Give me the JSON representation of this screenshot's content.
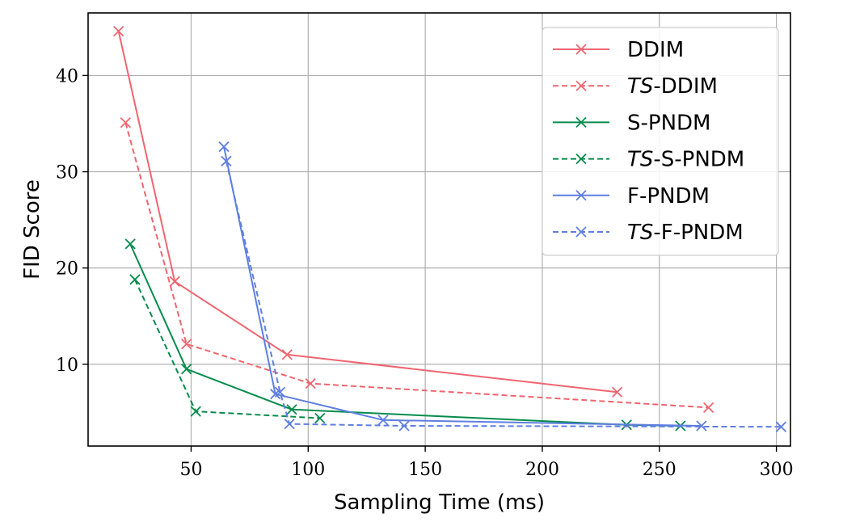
{
  "chart_data": {
    "type": "line",
    "title": "",
    "xlabel": "Sampling Time (ms)",
    "ylabel": "FID Score",
    "xlim": [
      6,
      306
    ],
    "ylim": [
      1.5,
      46.5
    ],
    "xticks": [
      50,
      100,
      150,
      200,
      250,
      300
    ],
    "yticks": [
      10,
      20,
      30,
      40
    ],
    "grid": true,
    "legend_position": "top-right",
    "series": [
      {
        "name": "DDIM",
        "name_prefix": "",
        "name_suffix": "DDIM",
        "color": "#f0656f",
        "linestyle": "solid",
        "marker": "x",
        "points": [
          [
            19,
            44.6
          ],
          [
            43,
            18.6
          ],
          [
            91,
            11.0
          ],
          [
            232,
            7.1
          ]
        ]
      },
      {
        "name": "TS-DDIM",
        "name_prefix": "TS",
        "name_suffix": "-DDIM",
        "color": "#f0656f",
        "linestyle": "dashed",
        "marker": "x",
        "points": [
          [
            22,
            35.1
          ],
          [
            48,
            12.1
          ],
          [
            101,
            8.0
          ],
          [
            271,
            5.5
          ]
        ]
      },
      {
        "name": "S-PNDM",
        "name_prefix": "",
        "name_suffix": "S-PNDM",
        "color": "#068c4c",
        "linestyle": "solid",
        "marker": "x",
        "points": [
          [
            24,
            22.5
          ],
          [
            48,
            9.5
          ],
          [
            93,
            5.3
          ],
          [
            236,
            3.7
          ],
          [
            259,
            3.6
          ]
        ]
      },
      {
        "name": "TS-S-PNDM",
        "name_prefix": "TS",
        "name_suffix": "-S-PNDM",
        "color": "#068c4c",
        "linestyle": "dashed",
        "marker": "x",
        "points": [
          [
            26,
            18.8
          ],
          [
            52,
            5.1
          ],
          [
            105,
            4.4
          ]
        ]
      },
      {
        "name": "F-PNDM",
        "name_prefix": "",
        "name_suffix": "F-PNDM",
        "color": "#5f7fe0",
        "linestyle": "solid",
        "marker": "x",
        "points": [
          [
            64,
            32.6
          ],
          [
            86,
            6.9
          ],
          [
            132,
            4.2
          ],
          [
            268,
            3.6
          ]
        ]
      },
      {
        "name": "TS-F-PNDM",
        "name_prefix": "TS",
        "name_suffix": "-F-PNDM",
        "color": "#5f7fe0",
        "linestyle": "dashed",
        "marker": "x",
        "points": [
          [
            65,
            31.1
          ],
          [
            88,
            7.1
          ],
          [
            92,
            3.8
          ],
          [
            141,
            3.6
          ],
          [
            302,
            3.5
          ]
        ]
      }
    ]
  }
}
